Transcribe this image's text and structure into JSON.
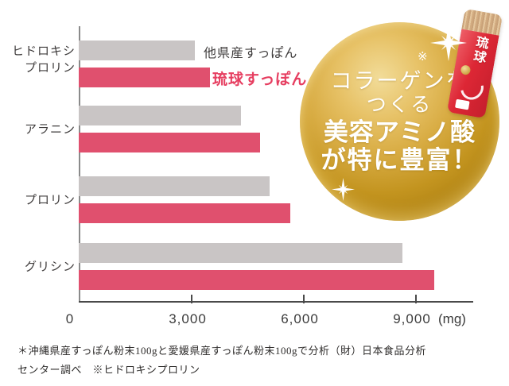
{
  "chart_data": {
    "type": "bar",
    "orientation": "horizontal",
    "title": "",
    "categories": [
      "ヒドロキシプロリン",
      "アラニン",
      "プロリン",
      "グリシン"
    ],
    "category_display_lines": [
      [
        "ヒドロキシ",
        "プロリン"
      ],
      [
        "アラニン"
      ],
      [
        "プロリン"
      ],
      [
        "グリシン"
      ]
    ],
    "series": [
      {
        "name": "他県産すっぽん",
        "color": "#c9c5c5",
        "values": [
          3100,
          4350,
          5100,
          8650
        ]
      },
      {
        "name": "琉球すっぽん",
        "color": "#e0506e",
        "values": [
          3500,
          4850,
          5650,
          9500
        ]
      }
    ],
    "x_axis": {
      "tick_labels": [
        "0",
        "3,000",
        "6,000",
        "9,000"
      ],
      "tick_values": [
        0,
        3000,
        6000,
        9000
      ],
      "unit": "(mg)",
      "range": [
        0,
        10550
      ]
    },
    "grid": false,
    "legend_position": "right-of-first-bar-pair"
  },
  "badge": {
    "ref_mark": "※",
    "lines": [
      "コラーゲンを",
      "つくる",
      "美容アミノ酸",
      "が特に豊富！"
    ],
    "text_color": "#ffffff",
    "gold_light": "#f2dc99",
    "gold_dark": "#a87c10"
  },
  "product_packet": {
    "brand_text": "琉球",
    "body_color": "#dd2735",
    "seal_color": "#d2ab80"
  },
  "footnote": {
    "line1": "＊沖縄県産すっぽん粉末100gと愛媛県産すっぽん粉末100gで分析（財）日本食品分析",
    "line2": "センター調べ　※ヒドロキシプロリン"
  },
  "colors": {
    "background": "#ffffff",
    "bar_gray": "#c9c5c5",
    "bar_red": "#e0506e",
    "legend_red_text": "#e63e60",
    "axis": "#4a4a4a",
    "label_text": "#3f3c3c"
  }
}
